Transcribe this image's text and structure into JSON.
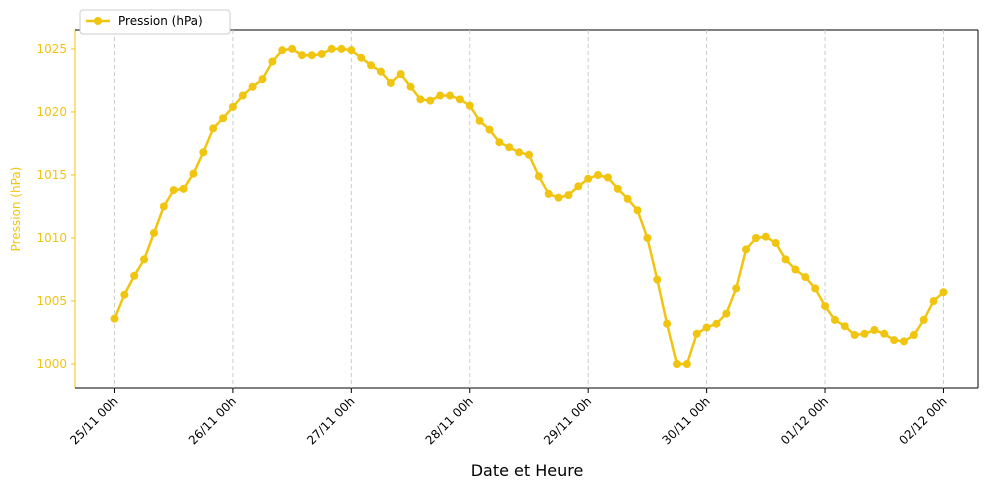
{
  "chart_data": {
    "type": "line",
    "xlabel": "Date et Heure",
    "ylabel": "Pression (hPa)",
    "x": [
      "25/11 00h",
      "25/11 02h",
      "25/11 04h",
      "25/11 06h",
      "25/11 08h",
      "25/11 10h",
      "25/11 12h",
      "25/11 14h",
      "25/11 16h",
      "25/11 18h",
      "25/11 20h",
      "25/11 22h",
      "26/11 00h",
      "26/11 02h",
      "26/11 04h",
      "26/11 06h",
      "26/11 08h",
      "26/11 10h",
      "26/11 12h",
      "26/11 14h",
      "26/11 16h",
      "26/11 18h",
      "26/11 20h",
      "26/11 22h",
      "27/11 00h",
      "27/11 02h",
      "27/11 04h",
      "27/11 06h",
      "27/11 08h",
      "27/11 10h",
      "27/11 12h",
      "27/11 14h",
      "27/11 16h",
      "27/11 18h",
      "27/11 20h",
      "27/11 22h",
      "28/11 00h",
      "28/11 02h",
      "28/11 04h",
      "28/11 06h",
      "28/11 08h",
      "28/11 10h",
      "28/11 12h",
      "28/11 14h",
      "28/11 16h",
      "28/11 18h",
      "28/11 20h",
      "28/11 22h",
      "29/11 00h",
      "29/11 02h",
      "29/11 04h",
      "29/11 06h",
      "29/11 08h",
      "29/11 10h",
      "29/11 12h",
      "29/11 14h",
      "29/11 16h",
      "29/11 18h",
      "29/11 20h",
      "29/11 22h",
      "30/11 00h",
      "30/11 02h",
      "30/11 04h",
      "30/11 06h",
      "30/11 08h",
      "30/11 10h",
      "30/11 12h",
      "30/11 14h",
      "30/11 16h",
      "30/11 18h",
      "30/11 20h",
      "30/11 22h",
      "01/12 00h",
      "01/12 02h",
      "01/12 04h",
      "01/12 06h",
      "01/12 08h",
      "01/12 10h",
      "01/12 12h",
      "01/12 14h",
      "01/12 16h",
      "01/12 18h",
      "01/12 20h",
      "01/12 22h",
      "02/12 00h"
    ],
    "series": [
      {
        "name": "Pression (hPa)",
        "color": "#f1c40f",
        "values": [
          1003.6,
          1005.5,
          1007.0,
          1008.3,
          1010.4,
          1012.5,
          1013.8,
          1013.9,
          1015.1,
          1016.8,
          1018.7,
          1019.5,
          1020.4,
          1021.3,
          1022.0,
          1022.6,
          1024.0,
          1024.9,
          1025.0,
          1024.5,
          1024.5,
          1024.6,
          1025.0,
          1025.0,
          1024.9,
          1024.3,
          1023.7,
          1023.2,
          1022.3,
          1023.0,
          1022.0,
          1021.0,
          1020.9,
          1021.3,
          1021.3,
          1021.0,
          1020.5,
          1019.3,
          1018.6,
          1017.6,
          1017.2,
          1016.8,
          1016.6,
          1014.9,
          1013.5,
          1013.2,
          1013.4,
          1014.1,
          1014.7,
          1015.0,
          1014.8,
          1013.9,
          1013.1,
          1012.2,
          1010.0,
          1006.7,
          1003.2,
          1000.0,
          1000.0,
          1002.4,
          1002.9,
          1003.2,
          1004.0,
          1006.0,
          1009.1,
          1010.0,
          1010.1,
          1009.6,
          1008.3,
          1007.5,
          1006.9,
          1006.0,
          1004.6,
          1003.5,
          1003.0,
          1002.3,
          1002.4,
          1002.7,
          1002.4,
          1001.9,
          1001.8,
          1002.3,
          1003.5,
          1005.0,
          1005.7
        ]
      }
    ],
    "xlim": [
      "24/11 16h",
      "02/12 07h"
    ],
    "xticks": [
      "25/11 00h",
      "26/11 00h",
      "27/11 00h",
      "28/11 00h",
      "29/11 00h",
      "30/11 00h",
      "01/12 00h",
      "02/12 00h"
    ],
    "ylim": [
      998.1,
      1026.5
    ],
    "yticks": [
      1000,
      1005,
      1010,
      1015,
      1020,
      1025
    ],
    "grid": "x",
    "legend": "upper left"
  }
}
